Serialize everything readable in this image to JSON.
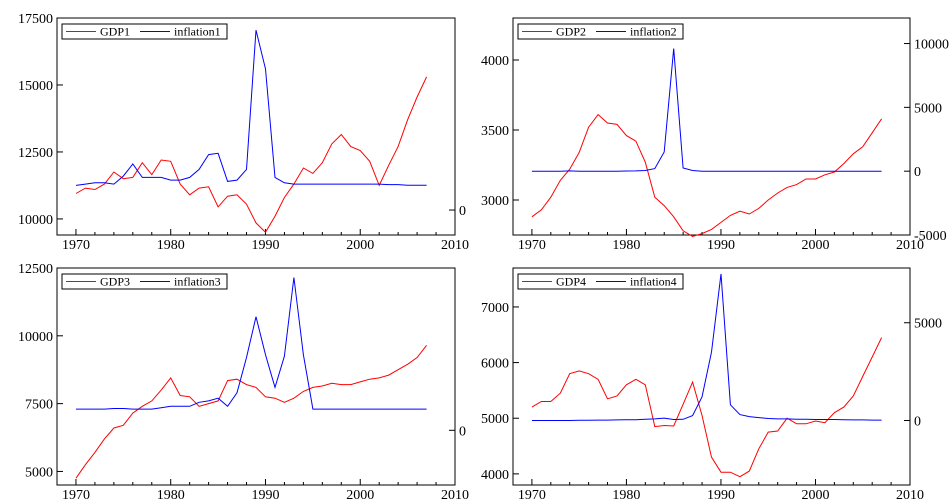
{
  "chart_data": [
    {
      "type": "line",
      "xlim": [
        1968,
        2010
      ],
      "xticks": [
        1970,
        1980,
        1990,
        2000,
        2010
      ],
      "x": [
        1970,
        1971,
        1972,
        1973,
        1974,
        1975,
        1976,
        1977,
        1978,
        1979,
        1980,
        1981,
        1982,
        1983,
        1984,
        1985,
        1986,
        1987,
        1988,
        1989,
        1990,
        1991,
        1992,
        1993,
        1994,
        1995,
        1996,
        1997,
        1998,
        1999,
        2000,
        2001,
        2002,
        2003,
        2004,
        2005,
        2006,
        2007
      ],
      "left_axis": {
        "ylim": [
          9400,
          17500
        ],
        "ticks": [
          10000,
          12500,
          15000,
          17500
        ]
      },
      "right_axis": {
        "ylim": [
          -1300,
          10000
        ],
        "ticks": [
          0
        ]
      },
      "legend": "top-left",
      "series": [
        {
          "name": "GDP1",
          "axis": "left",
          "color": "#ff0000",
          "values": [
            10950,
            11150,
            11100,
            11300,
            11750,
            11500,
            11550,
            12100,
            11650,
            12200,
            12150,
            11300,
            10900,
            11150,
            11200,
            10450,
            10850,
            10900,
            10550,
            9850,
            9500,
            10100,
            10800,
            11300,
            11900,
            11700,
            12100,
            12800,
            13150,
            12700,
            12550,
            12150,
            11250,
            12000,
            12700,
            13700,
            14550,
            15300
          ]
        },
        {
          "name": "inflation1",
          "axis": "left",
          "color": "#0000ff",
          "values": [
            11250,
            11300,
            11350,
            11350,
            11300,
            11600,
            12050,
            11550,
            11550,
            11550,
            11450,
            11450,
            11550,
            11850,
            12400,
            12450,
            11400,
            11450,
            11850,
            17050,
            15600,
            11550,
            11350,
            11300,
            11300,
            11300,
            11300,
            11300,
            11300,
            11300,
            11300,
            11300,
            11300,
            11280,
            11280,
            11260,
            11260,
            11260
          ]
        }
      ]
    },
    {
      "type": "line",
      "xlim": [
        1968,
        2010
      ],
      "xticks": [
        1970,
        1980,
        1990,
        2000,
        2010
      ],
      "x": [
        1970,
        1971,
        1972,
        1973,
        1974,
        1975,
        1976,
        1977,
        1978,
        1979,
        1980,
        1981,
        1982,
        1983,
        1984,
        1985,
        1986,
        1987,
        1988,
        1989,
        1990,
        1991,
        1992,
        1993,
        1994,
        1995,
        1996,
        1997,
        1998,
        1999,
        2000,
        2001,
        2002,
        2003,
        2004,
        2005,
        2006,
        2007
      ],
      "left_axis": {
        "ylim": [
          2750,
          4300
        ],
        "ticks": [
          3000,
          3500,
          4000
        ]
      },
      "right_axis": {
        "ylim": [
          -5000,
          12000
        ],
        "ticks": [
          -5000,
          0,
          5000,
          10000
        ]
      },
      "legend": "top-left",
      "series": [
        {
          "name": "GDP2",
          "axis": "left",
          "color": "#ff0000",
          "values": [
            2880,
            2930,
            3020,
            3140,
            3220,
            3340,
            3520,
            3610,
            3550,
            3540,
            3460,
            3420,
            3270,
            3020,
            2960,
            2880,
            2780,
            2740,
            2760,
            2790,
            2840,
            2890,
            2920,
            2900,
            2940,
            3000,
            3050,
            3090,
            3110,
            3150,
            3150,
            3180,
            3200,
            3260,
            3330,
            3380,
            3480,
            3580
          ]
        },
        {
          "name": "inflation2",
          "axis": "right",
          "color": "#0000ff",
          "values": [
            0,
            0,
            0,
            0,
            20,
            0,
            0,
            0,
            0,
            0,
            10,
            20,
            50,
            200,
            1500,
            9600,
            250,
            50,
            0,
            0,
            0,
            0,
            0,
            0,
            0,
            0,
            0,
            0,
            0,
            0,
            0,
            0,
            0,
            0,
            0,
            0,
            0,
            0
          ]
        }
      ]
    },
    {
      "type": "line",
      "xlim": [
        1968,
        2010
      ],
      "xticks": [
        1970,
        1980,
        1990,
        2000,
        2010
      ],
      "x": [
        1970,
        1971,
        1972,
        1973,
        1974,
        1975,
        1976,
        1977,
        1978,
        1979,
        1980,
        1981,
        1982,
        1983,
        1984,
        1985,
        1986,
        1987,
        1988,
        1989,
        1990,
        1991,
        1992,
        1993,
        1994,
        1995,
        1996,
        1997,
        1998,
        1999,
        2000,
        2001,
        2002,
        2003,
        2004,
        2005,
        2006,
        2007
      ],
      "left_axis": {
        "ylim": [
          4500,
          12500
        ],
        "ticks": [
          5000,
          7500,
          10000,
          12500
        ]
      },
      "right_axis": {
        "ylim": [
          -3100,
          9200
        ],
        "ticks": [
          0
        ]
      },
      "legend": "top-left",
      "series": [
        {
          "name": "GDP3",
          "axis": "left",
          "color": "#ff0000",
          "values": [
            4750,
            5250,
            5700,
            6200,
            6600,
            6700,
            7150,
            7400,
            7600,
            8000,
            8450,
            7800,
            7750,
            7400,
            7500,
            7600,
            8350,
            8400,
            8200,
            8100,
            7750,
            7700,
            7550,
            7700,
            7950,
            8100,
            8150,
            8250,
            8200,
            8200,
            8300,
            8400,
            8450,
            8550,
            8750,
            8950,
            9200,
            9650
          ]
        },
        {
          "name": "inflation3",
          "axis": "left",
          "color": "#0000ff",
          "values": [
            7300,
            7300,
            7300,
            7300,
            7320,
            7320,
            7300,
            7300,
            7300,
            7350,
            7400,
            7400,
            7400,
            7550,
            7600,
            7700,
            7400,
            7900,
            9200,
            10700,
            9300,
            8100,
            9250,
            12150,
            9300,
            7300,
            7300,
            7300,
            7300,
            7300,
            7300,
            7300,
            7300,
            7300,
            7300,
            7300,
            7300,
            7300
          ]
        }
      ]
    },
    {
      "type": "line",
      "xlim": [
        1968,
        2010
      ],
      "xticks": [
        1970,
        1980,
        1990,
        2000,
        2010
      ],
      "x": [
        1970,
        1971,
        1972,
        1973,
        1974,
        1975,
        1976,
        1977,
        1978,
        1979,
        1980,
        1981,
        1982,
        1983,
        1984,
        1985,
        1986,
        1987,
        1988,
        1989,
        1990,
        1991,
        1992,
        1993,
        1994,
        1995,
        1996,
        1997,
        1998,
        1999,
        2000,
        2001,
        2002,
        2003,
        2004,
        2005,
        2006,
        2007
      ],
      "left_axis": {
        "ylim": [
          3800,
          7700
        ],
        "ticks": [
          4000,
          5000,
          6000,
          7000
        ]
      },
      "right_axis": {
        "ylim": [
          -3300,
          7800
        ],
        "ticks": [
          0,
          5000
        ]
      },
      "legend": "top-left",
      "series": [
        {
          "name": "GDP4",
          "axis": "left",
          "color": "#ff0000",
          "values": [
            5200,
            5300,
            5300,
            5450,
            5800,
            5850,
            5800,
            5700,
            5350,
            5400,
            5600,
            5700,
            5600,
            4850,
            4870,
            4860,
            5250,
            5650,
            5050,
            4300,
            4030,
            4030,
            3950,
            4050,
            4450,
            4750,
            4770,
            5000,
            4900,
            4900,
            4950,
            4920,
            5100,
            5200,
            5400,
            5750,
            6100,
            6450
          ]
        },
        {
          "name": "inflation4",
          "axis": "right",
          "color": "#0000ff",
          "values": [
            0,
            0,
            0,
            0,
            0,
            10,
            10,
            20,
            20,
            30,
            40,
            40,
            60,
            80,
            120,
            50,
            60,
            250,
            1200,
            3500,
            7500,
            800,
            300,
            200,
            150,
            100,
            80,
            80,
            60,
            60,
            50,
            50,
            50,
            40,
            30,
            30,
            20,
            20
          ]
        }
      ]
    }
  ]
}
